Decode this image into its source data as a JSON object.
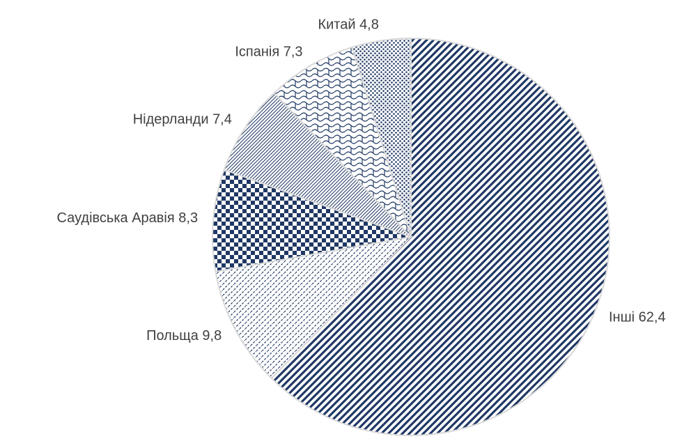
{
  "chart_data": {
    "type": "pie",
    "categories": [
      "Інші",
      "Польща",
      "Саудівська Аравія",
      "Нідерланди",
      "Іспанія",
      "Китай"
    ],
    "values": [
      62.4,
      9.8,
      8.3,
      7.4,
      7.3,
      4.8
    ],
    "value_labels": [
      "62,4",
      "9,8",
      "8,3",
      "7,4",
      "7,3",
      "4,8"
    ],
    "color": "#1f3864"
  }
}
